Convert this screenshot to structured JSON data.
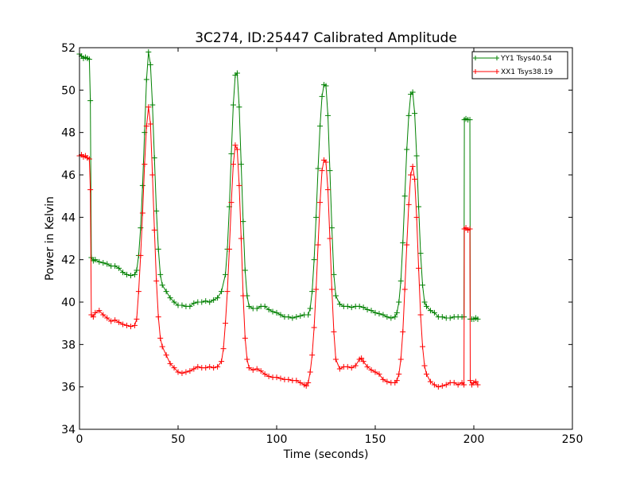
{
  "chart_data": {
    "type": "line",
    "title": "3C274, ID:25447 Calibrated Amplitude",
    "xlabel": "Time (seconds)",
    "ylabel": "Power in Kelvin",
    "xlim": [
      0,
      250
    ],
    "ylim": [
      34,
      52
    ],
    "xticks": [
      0,
      50,
      100,
      150,
      200,
      250
    ],
    "yticks": [
      34,
      36,
      38,
      40,
      42,
      44,
      46,
      48,
      50,
      52
    ],
    "grid": false,
    "legend_position": "top-right",
    "marker": "+",
    "series": [
      {
        "name": "YY1 Tsys40.54",
        "color": "#008000",
        "points": [
          [
            0,
            51.7
          ],
          [
            1,
            51.6
          ],
          [
            2,
            51.5
          ],
          [
            3,
            51.55
          ],
          [
            4,
            51.5
          ],
          [
            5,
            51.45
          ],
          [
            5.5,
            49.5
          ],
          [
            6,
            42.1
          ],
          [
            7,
            41.95
          ],
          [
            8,
            42.0
          ],
          [
            10,
            41.9
          ],
          [
            12,
            41.85
          ],
          [
            14,
            41.8
          ],
          [
            16,
            41.7
          ],
          [
            18,
            41.7
          ],
          [
            20,
            41.6
          ],
          [
            22,
            41.4
          ],
          [
            24,
            41.3
          ],
          [
            26,
            41.25
          ],
          [
            28,
            41.3
          ],
          [
            29,
            41.5
          ],
          [
            30,
            42.2
          ],
          [
            31,
            43.5
          ],
          [
            32,
            45.5
          ],
          [
            33,
            48.0
          ],
          [
            34,
            50.5
          ],
          [
            35,
            51.8
          ],
          [
            36,
            51.2
          ],
          [
            37,
            49.3
          ],
          [
            38,
            46.8
          ],
          [
            39,
            44.3
          ],
          [
            40,
            42.5
          ],
          [
            41,
            41.3
          ],
          [
            42,
            40.8
          ],
          [
            44,
            40.5
          ],
          [
            46,
            40.2
          ],
          [
            48,
            40.0
          ],
          [
            50,
            39.85
          ],
          [
            52,
            39.85
          ],
          [
            54,
            39.8
          ],
          [
            56,
            39.8
          ],
          [
            58,
            39.95
          ],
          [
            60,
            40.0
          ],
          [
            62,
            40.0
          ],
          [
            64,
            40.05
          ],
          [
            66,
            40.0
          ],
          [
            68,
            40.1
          ],
          [
            70,
            40.2
          ],
          [
            72,
            40.5
          ],
          [
            74,
            41.3
          ],
          [
            75,
            42.5
          ],
          [
            76,
            44.5
          ],
          [
            77,
            47.0
          ],
          [
            78,
            49.3
          ],
          [
            79,
            50.7
          ],
          [
            80,
            50.8
          ],
          [
            81,
            49.2
          ],
          [
            82,
            46.5
          ],
          [
            83,
            43.8
          ],
          [
            84,
            41.5
          ],
          [
            85,
            40.3
          ],
          [
            86,
            39.8
          ],
          [
            88,
            39.7
          ],
          [
            90,
            39.7
          ],
          [
            92,
            39.8
          ],
          [
            94,
            39.8
          ],
          [
            96,
            39.65
          ],
          [
            98,
            39.55
          ],
          [
            100,
            39.5
          ],
          [
            102,
            39.4
          ],
          [
            104,
            39.3
          ],
          [
            106,
            39.3
          ],
          [
            108,
            39.25
          ],
          [
            110,
            39.3
          ],
          [
            112,
            39.35
          ],
          [
            114,
            39.4
          ],
          [
            116,
            39.4
          ],
          [
            117,
            39.7
          ],
          [
            118,
            40.5
          ],
          [
            119,
            42.0
          ],
          [
            120,
            44.0
          ],
          [
            121,
            46.3
          ],
          [
            122,
            48.3
          ],
          [
            123,
            49.7
          ],
          [
            124,
            50.25
          ],
          [
            125,
            50.2
          ],
          [
            126,
            48.8
          ],
          [
            127,
            46.2
          ],
          [
            128,
            43.5
          ],
          [
            129,
            41.3
          ],
          [
            130,
            40.3
          ],
          [
            132,
            39.9
          ],
          [
            134,
            39.8
          ],
          [
            136,
            39.8
          ],
          [
            138,
            39.75
          ],
          [
            140,
            39.8
          ],
          [
            142,
            39.8
          ],
          [
            144,
            39.75
          ],
          [
            146,
            39.65
          ],
          [
            148,
            39.6
          ],
          [
            150,
            39.5
          ],
          [
            152,
            39.45
          ],
          [
            154,
            39.4
          ],
          [
            156,
            39.3
          ],
          [
            158,
            39.25
          ],
          [
            160,
            39.3
          ],
          [
            161,
            39.5
          ],
          [
            162,
            40.0
          ],
          [
            163,
            41.0
          ],
          [
            164,
            42.8
          ],
          [
            165,
            45.0
          ],
          [
            166,
            47.2
          ],
          [
            167,
            48.8
          ],
          [
            168,
            49.8
          ],
          [
            169,
            49.9
          ],
          [
            170,
            48.9
          ],
          [
            171,
            46.9
          ],
          [
            172,
            44.5
          ],
          [
            173,
            42.3
          ],
          [
            174,
            40.8
          ],
          [
            175,
            40.0
          ],
          [
            176,
            39.8
          ],
          [
            178,
            39.6
          ],
          [
            180,
            39.5
          ],
          [
            182,
            39.3
          ],
          [
            184,
            39.3
          ],
          [
            186,
            39.25
          ],
          [
            188,
            39.25
          ],
          [
            190,
            39.3
          ],
          [
            192,
            39.3
          ],
          [
            194,
            39.3
          ],
          [
            195,
            39.3
          ],
          [
            195.2,
            48.6
          ],
          [
            196,
            48.65
          ],
          [
            197,
            48.6
          ],
          [
            198,
            48.6
          ],
          [
            198.2,
            39.2
          ],
          [
            199,
            39.2
          ],
          [
            200,
            39.2
          ],
          [
            201,
            39.25
          ],
          [
            202,
            39.2
          ]
        ]
      },
      {
        "name": "XX1 Tsys38.19",
        "color": "#ff0000",
        "points": [
          [
            0,
            46.9
          ],
          [
            1,
            46.95
          ],
          [
            2,
            46.85
          ],
          [
            3,
            46.9
          ],
          [
            4,
            46.8
          ],
          [
            5,
            46.75
          ],
          [
            5.5,
            45.3
          ],
          [
            6,
            39.4
          ],
          [
            7,
            39.3
          ],
          [
            8,
            39.5
          ],
          [
            10,
            39.6
          ],
          [
            12,
            39.4
          ],
          [
            14,
            39.25
          ],
          [
            16,
            39.1
          ],
          [
            18,
            39.15
          ],
          [
            20,
            39.05
          ],
          [
            22,
            38.95
          ],
          [
            24,
            38.9
          ],
          [
            26,
            38.85
          ],
          [
            28,
            38.9
          ],
          [
            29,
            39.2
          ],
          [
            30,
            40.5
          ],
          [
            31,
            42.2
          ],
          [
            32,
            44.2
          ],
          [
            33,
            46.5
          ],
          [
            34,
            48.3
          ],
          [
            35,
            49.2
          ],
          [
            36,
            48.4
          ],
          [
            37,
            46.0
          ],
          [
            38,
            43.4
          ],
          [
            39,
            41.0
          ],
          [
            40,
            39.3
          ],
          [
            41,
            38.3
          ],
          [
            42,
            37.9
          ],
          [
            44,
            37.5
          ],
          [
            46,
            37.1
          ],
          [
            48,
            36.9
          ],
          [
            50,
            36.7
          ],
          [
            52,
            36.65
          ],
          [
            54,
            36.7
          ],
          [
            56,
            36.75
          ],
          [
            58,
            36.85
          ],
          [
            60,
            36.95
          ],
          [
            62,
            36.9
          ],
          [
            64,
            36.9
          ],
          [
            66,
            36.95
          ],
          [
            68,
            36.9
          ],
          [
            70,
            36.95
          ],
          [
            72,
            37.2
          ],
          [
            73,
            37.8
          ],
          [
            74,
            39.0
          ],
          [
            75,
            40.5
          ],
          [
            76,
            42.5
          ],
          [
            77,
            44.7
          ],
          [
            78,
            46.5
          ],
          [
            79,
            47.4
          ],
          [
            80,
            47.2
          ],
          [
            81,
            45.5
          ],
          [
            82,
            43.0
          ],
          [
            83,
            40.3
          ],
          [
            84,
            38.3
          ],
          [
            85,
            37.3
          ],
          [
            86,
            36.9
          ],
          [
            88,
            36.8
          ],
          [
            90,
            36.85
          ],
          [
            92,
            36.75
          ],
          [
            94,
            36.6
          ],
          [
            96,
            36.5
          ],
          [
            98,
            36.45
          ],
          [
            100,
            36.45
          ],
          [
            102,
            36.4
          ],
          [
            104,
            36.35
          ],
          [
            106,
            36.35
          ],
          [
            108,
            36.3
          ],
          [
            110,
            36.3
          ],
          [
            112,
            36.2
          ],
          [
            114,
            36.1
          ],
          [
            115,
            36.05
          ],
          [
            116,
            36.2
          ],
          [
            117,
            36.7
          ],
          [
            118,
            37.5
          ],
          [
            119,
            38.8
          ],
          [
            120,
            40.6
          ],
          [
            121,
            42.7
          ],
          [
            122,
            44.7
          ],
          [
            123,
            46.2
          ],
          [
            124,
            46.7
          ],
          [
            125,
            46.6
          ],
          [
            126,
            45.3
          ],
          [
            127,
            43.0
          ],
          [
            128,
            40.6
          ],
          [
            129,
            38.6
          ],
          [
            130,
            37.3
          ],
          [
            132,
            36.85
          ],
          [
            134,
            36.95
          ],
          [
            136,
            36.95
          ],
          [
            138,
            36.9
          ],
          [
            140,
            37.0
          ],
          [
            142,
            37.3
          ],
          [
            143,
            37.35
          ],
          [
            144,
            37.2
          ],
          [
            146,
            36.95
          ],
          [
            148,
            36.8
          ],
          [
            150,
            36.7
          ],
          [
            152,
            36.6
          ],
          [
            154,
            36.35
          ],
          [
            156,
            36.25
          ],
          [
            158,
            36.2
          ],
          [
            160,
            36.2
          ],
          [
            161,
            36.3
          ],
          [
            162,
            36.6
          ],
          [
            163,
            37.3
          ],
          [
            164,
            38.6
          ],
          [
            165,
            40.6
          ],
          [
            166,
            42.7
          ],
          [
            167,
            44.6
          ],
          [
            168,
            46.0
          ],
          [
            169,
            46.4
          ],
          [
            170,
            45.8
          ],
          [
            171,
            44.0
          ],
          [
            172,
            41.6
          ],
          [
            173,
            39.4
          ],
          [
            174,
            37.9
          ],
          [
            175,
            37.0
          ],
          [
            176,
            36.6
          ],
          [
            178,
            36.25
          ],
          [
            180,
            36.1
          ],
          [
            182,
            36.0
          ],
          [
            184,
            36.05
          ],
          [
            186,
            36.1
          ],
          [
            188,
            36.2
          ],
          [
            190,
            36.2
          ],
          [
            192,
            36.1
          ],
          [
            194,
            36.2
          ],
          [
            195,
            36.1
          ],
          [
            195.2,
            43.45
          ],
          [
            196,
            43.5
          ],
          [
            197,
            43.4
          ],
          [
            198,
            43.45
          ],
          [
            198.2,
            36.3
          ],
          [
            199,
            36.1
          ],
          [
            200,
            36.2
          ],
          [
            201,
            36.25
          ],
          [
            202,
            36.1
          ]
        ]
      }
    ]
  }
}
